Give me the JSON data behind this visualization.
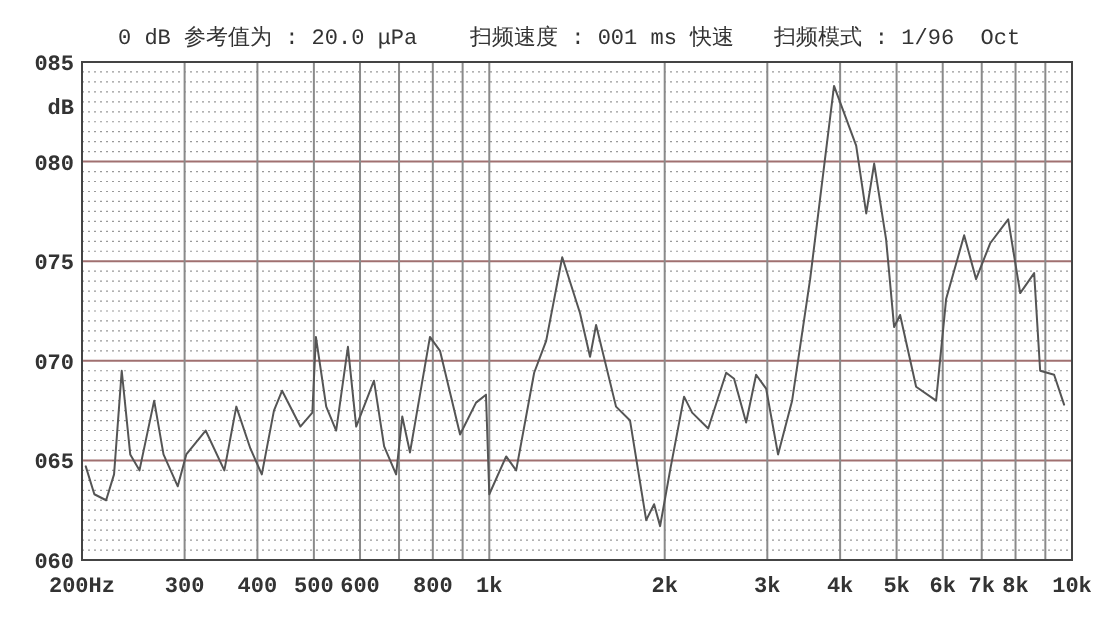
{
  "chart_data": {
    "type": "line",
    "title": "0 dB 参考值为 : 20.0 μPa    扫频速度 : 001 ms 快速   扫频模式 : 1/96  Oct",
    "ylabel": "dB",
    "log": "x",
    "grid": true,
    "marker": "none",
    "line_style": "solid",
    "xlim": [
      200,
      10000
    ],
    "ylim": [
      60,
      85
    ],
    "xticks": [
      {
        "value": 200,
        "label": "200Hz"
      },
      300,
      400,
      500,
      600,
      {
        "value": 700,
        "label": null
      },
      800,
      {
        "value": 900,
        "label": null
      },
      {
        "value": 1000,
        "label": "1k"
      },
      {
        "value": 2000,
        "label": "2k"
      },
      {
        "value": 3000,
        "label": "3k"
      },
      {
        "value": 4000,
        "label": "4k"
      },
      {
        "value": 5000,
        "label": "5k"
      },
      {
        "value": 6000,
        "label": "6k"
      },
      {
        "value": 7000,
        "label": "7k"
      },
      {
        "value": 8000,
        "label": "8k"
      },
      {
        "value": 9000,
        "label": null
      },
      {
        "value": 10000,
        "label": "10k"
      }
    ],
    "yticks": [
      {
        "value": 60,
        "label": "060"
      },
      {
        "value": 65,
        "label": "065"
      },
      {
        "value": 70,
        "label": "070"
      },
      {
        "value": 75,
        "label": "075"
      },
      {
        "value": 80,
        "label": "080"
      },
      {
        "value": 85,
        "label": "085"
      }
    ],
    "series": [
      {
        "color": "#555555",
        "x": [
          203,
          210,
          220,
          227,
          234,
          242,
          251,
          266,
          276,
          292,
          302,
          326,
          351,
          368,
          389,
          407,
          427,
          441,
          474,
          497,
          504,
          525,
          546,
          572,
          591,
          634,
          660,
          692,
          709,
          731,
          791,
          823,
          891,
          949,
          987,
          1000,
          1069,
          1112,
          1194,
          1252,
          1334,
          1431,
          1489,
          1525,
          1650,
          1744,
          1859,
          1918,
          1964,
          2043,
          2159,
          2229,
          2375,
          2550,
          2631,
          2759,
          2870,
          2986,
          3130,
          3309,
          3553,
          3905,
          4262,
          4435,
          4576,
          4797,
          4951,
          5070,
          5401,
          5845,
          6081,
          6530,
          6845,
          7237,
          7771,
          8149,
          8611,
          8818,
          9318,
          9692
        ],
        "values": [
          64.7,
          63.3,
          63.0,
          64.3,
          69.5,
          65.3,
          64.5,
          68.0,
          65.3,
          63.7,
          65.3,
          66.5,
          64.5,
          67.7,
          65.6,
          64.3,
          67.5,
          68.5,
          66.7,
          67.4,
          71.2,
          67.7,
          66.5,
          70.7,
          66.7,
          69.0,
          65.7,
          64.3,
          67.2,
          65.4,
          71.2,
          70.5,
          66.3,
          67.9,
          68.3,
          63.3,
          65.2,
          64.5,
          69.4,
          71.0,
          75.2,
          72.4,
          70.2,
          71.8,
          67.7,
          67.0,
          62.0,
          62.8,
          61.7,
          64.5,
          68.2,
          67.4,
          66.6,
          69.4,
          69.1,
          66.9,
          69.3,
          68.6,
          65.3,
          68.0,
          74.1,
          83.8,
          80.8,
          77.4,
          79.9,
          76.1,
          71.7,
          72.3,
          68.7,
          68.0,
          73.1,
          76.3,
          74.1,
          75.9,
          77.1,
          73.4,
          74.4,
          69.5,
          69.3,
          67.8
        ]
      }
    ]
  }
}
